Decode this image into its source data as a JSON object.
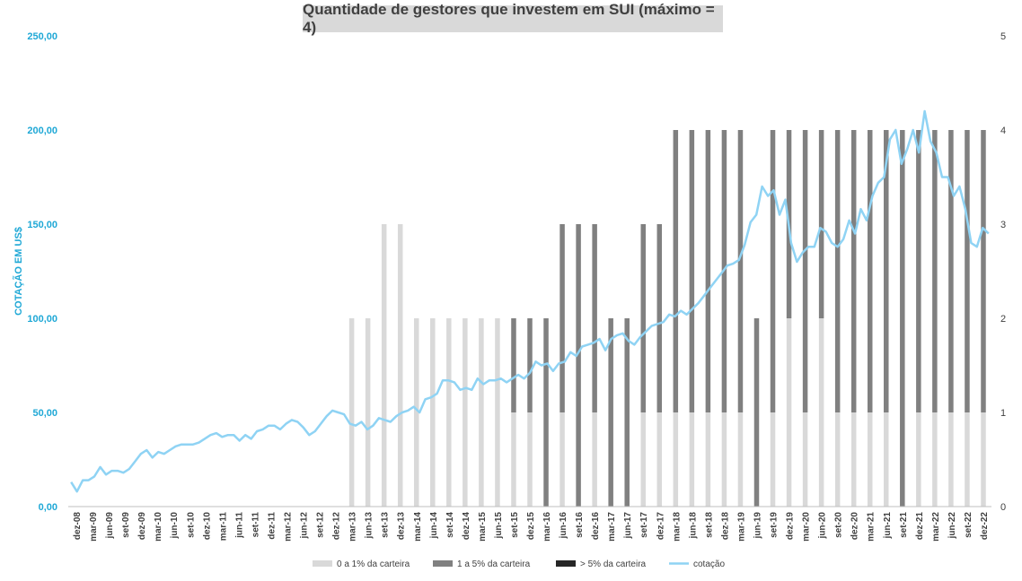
{
  "chart_data": {
    "type": "bar+line",
    "title": "Quantidade de gestores que investem em SUI (máximo = 4)",
    "ylabel": "COTAÇÃO EM US$",
    "ylim": [
      0,
      250
    ],
    "yticks": [
      "0,00",
      "50,00",
      "100,00",
      "150,00",
      "200,00",
      "250,00"
    ],
    "y2lim": [
      0,
      5
    ],
    "y2ticks": [
      "0",
      "1",
      "2",
      "3",
      "4",
      "5"
    ],
    "x_labels": [
      "dez-08",
      "mar-09",
      "jun-09",
      "set-09",
      "dez-09",
      "mar-10",
      "jun-10",
      "set-10",
      "dez-10",
      "mar-11",
      "jun-11",
      "set-11",
      "dez-11",
      "mar-12",
      "jun-12",
      "set-12",
      "dez-12",
      "mar-13",
      "jun-13",
      "set-13",
      "dez-13",
      "mar-14",
      "jun-14",
      "set-14",
      "dez-14",
      "mar-15",
      "jun-15",
      "set-15",
      "dez-15",
      "mar-16",
      "jun-16",
      "set-16",
      "dez-16",
      "mar-17",
      "jun-17",
      "set-17",
      "dez-17",
      "mar-18",
      "jun-18",
      "set-18",
      "dez-18",
      "mar-19",
      "jun-19",
      "set-19",
      "dez-19",
      "mar-20",
      "jun-20",
      "set-20",
      "dez-20",
      "mar-21",
      "jun-21",
      "set-21",
      "dez-21",
      "mar-22",
      "jun-22",
      "set-22",
      "dez-22"
    ],
    "bar_series": [
      {
        "name": "0 a 1% da carteira",
        "color": "#d9d9d9",
        "values": [
          0,
          0,
          0,
          0,
          0,
          0,
          0,
          0,
          0,
          0,
          0,
          0,
          0,
          0,
          0,
          0,
          0,
          2,
          2,
          3,
          3,
          2,
          2,
          2,
          2,
          2,
          2,
          1,
          1,
          0,
          1,
          0,
          1,
          0,
          0,
          1,
          1,
          1,
          1,
          1,
          1,
          1,
          0,
          1,
          2,
          1,
          2,
          1,
          1,
          1,
          1,
          0,
          1,
          1,
          1,
          1,
          1
        ]
      },
      {
        "name": "1 a 5% da carteira",
        "color": "#808080",
        "values": [
          0,
          0,
          0,
          0,
          0,
          0,
          0,
          0,
          0,
          0,
          0,
          0,
          0,
          0,
          0,
          0,
          0,
          0,
          0,
          0,
          0,
          0,
          0,
          0,
          0,
          0,
          0,
          1,
          1,
          2,
          2,
          3,
          2,
          2,
          2,
          2,
          2,
          3,
          3,
          3,
          3,
          3,
          2,
          3,
          2,
          3,
          2,
          3,
          3,
          3,
          3,
          4,
          3,
          3,
          3,
          3,
          3
        ]
      },
      {
        "name": "> 5% da carteira",
        "color": "#262626",
        "values": [
          0,
          0,
          0,
          0,
          0,
          0,
          0,
          0,
          0,
          0,
          0,
          0,
          0,
          0,
          0,
          0,
          0,
          0,
          0,
          0,
          0,
          0,
          0,
          0,
          0,
          0,
          0,
          0,
          0,
          0,
          0,
          0,
          0,
          0,
          0,
          0,
          0,
          0,
          0,
          0,
          0,
          0,
          0,
          0,
          0,
          0,
          0,
          0,
          0,
          0,
          0,
          0,
          0,
          0,
          0,
          0,
          0
        ]
      }
    ],
    "line_series": {
      "name": "cotação",
      "color": "#8fd3f4",
      "values": [
        13,
        8,
        14,
        14,
        16,
        21,
        17,
        19,
        19,
        18,
        20,
        24,
        28,
        30,
        26,
        29,
        28,
        30,
        32,
        33,
        33,
        33,
        34,
        36,
        38,
        39,
        37,
        38,
        38,
        35,
        38,
        36,
        40,
        41,
        43,
        43,
        41,
        44,
        46,
        45,
        42,
        38,
        40,
        44,
        48,
        51,
        50,
        49,
        44,
        43,
        45,
        41,
        43,
        47,
        46,
        45,
        48,
        50,
        51,
        53,
        50,
        57,
        58,
        60,
        67,
        67,
        66,
        62,
        63,
        62,
        68,
        65,
        67,
        67,
        68,
        66,
        68,
        70,
        68,
        71,
        77,
        75,
        76,
        72,
        76,
        77,
        82,
        80,
        85,
        86,
        87,
        89,
        83,
        89,
        91,
        92,
        88,
        86,
        90,
        93,
        96,
        97,
        98,
        102,
        101,
        104,
        102,
        105,
        108,
        112,
        116,
        120,
        124,
        128,
        129,
        131,
        139,
        151,
        155,
        170,
        165,
        168,
        155,
        163,
        140,
        130,
        135,
        138,
        138,
        148,
        146,
        140,
        138,
        142,
        152,
        145,
        158,
        152,
        165,
        172,
        175,
        195,
        200,
        182,
        190,
        200,
        188,
        210,
        194,
        188,
        175,
        175,
        165,
        170,
        158,
        140,
        138,
        148,
        145
      ]
    },
    "legend": {
      "placement": "bottom",
      "labels": [
        "0 a 1% da carteira",
        "1 a 5% da carteira",
        "> 5% da carteira",
        "cotação"
      ]
    },
    "grid": false
  }
}
